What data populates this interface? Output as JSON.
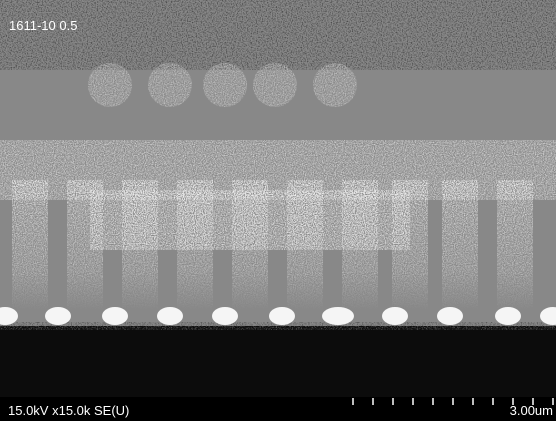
{
  "image": {
    "label": "1611-10 0.5"
  },
  "info_bar": {
    "settings": "15.0kV x15.0k SE(U)",
    "scale": "3.00um"
  }
}
